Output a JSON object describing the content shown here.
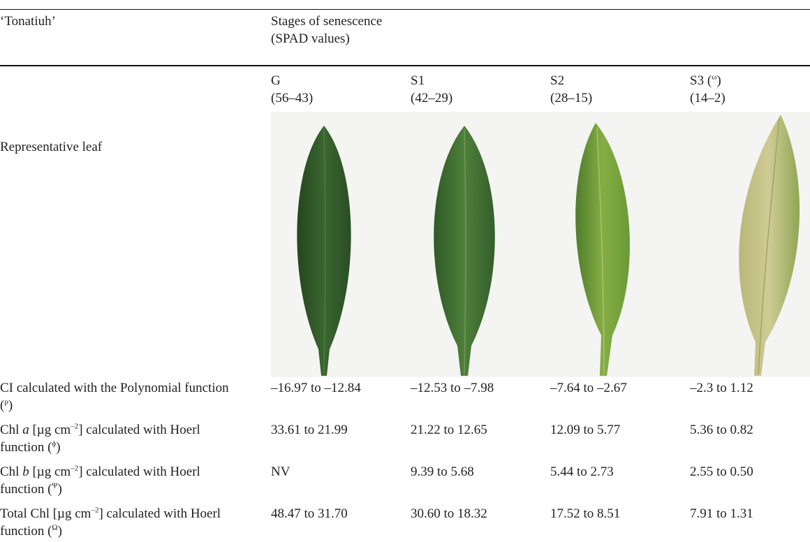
{
  "table": {
    "header": {
      "row_label": "‘Tonatiuh’",
      "group": "Stages of senescence (SPAD values)"
    },
    "stages": [
      {
        "name": [
          {
            "t": "G"
          }
        ],
        "range": "(56–43)"
      },
      {
        "name": [
          {
            "t": "S1"
          }
        ],
        "range": "(42–29)"
      },
      {
        "name": [
          {
            "t": "S2"
          }
        ],
        "range": "(28–15)"
      },
      {
        "name": [
          {
            "t": "S3 ("
          },
          {
            "t": "ω",
            "sup": true
          },
          {
            "t": ")"
          }
        ],
        "range": "(14–2)"
      }
    ],
    "leaf_row_label": "Representative leaf",
    "rows": [
      {
        "label": [
          {
            "t": "CI calculated with the Polynomial function ("
          },
          {
            "t": "ρ",
            "sup": true
          },
          {
            "t": ")"
          }
        ],
        "values": [
          "–16.97 to –12.84",
          "–12.53 to –7.98",
          "–7.64 to –2.67",
          "–2.3 to 1.12"
        ]
      },
      {
        "label": [
          {
            "t": "Chl "
          },
          {
            "t": "a",
            "i": true
          },
          {
            "t": " [µg cm"
          },
          {
            "t": "–2",
            "sup": true
          },
          {
            "t": "] calculated with Hoerl function ("
          },
          {
            "t": "ϕ",
            "sup": true
          },
          {
            "t": ")"
          }
        ],
        "values": [
          "33.61 to 21.99",
          "21.22 to 12.65",
          "12.09 to 5.77",
          "5.36 to 0.82"
        ]
      },
      {
        "label": [
          {
            "t": "Chl "
          },
          {
            "t": "b",
            "i": true
          },
          {
            "t": " [µg cm"
          },
          {
            "t": "–2",
            "sup": true
          },
          {
            "t": "] calculated with Hoerl function ("
          },
          {
            "t": "Ψ",
            "sup": true
          },
          {
            "t": ")"
          }
        ],
        "values": [
          "NV",
          "9.39 to 5.68",
          "5.44 to 2.73",
          "2.55 to 0.50"
        ]
      },
      {
        "label": [
          {
            "t": "Total Chl [µg cm"
          },
          {
            "t": "–2",
            "sup": true
          },
          {
            "t": "] calculated with Hoerl function ("
          },
          {
            "t": "Ω",
            "sup": true
          },
          {
            "t": ")"
          }
        ],
        "values": [
          "48.47 to 31.70",
          "30.60 to 18.32",
          "17.52 to 8.51",
          "7.91 to 1.31"
        ]
      }
    ]
  }
}
